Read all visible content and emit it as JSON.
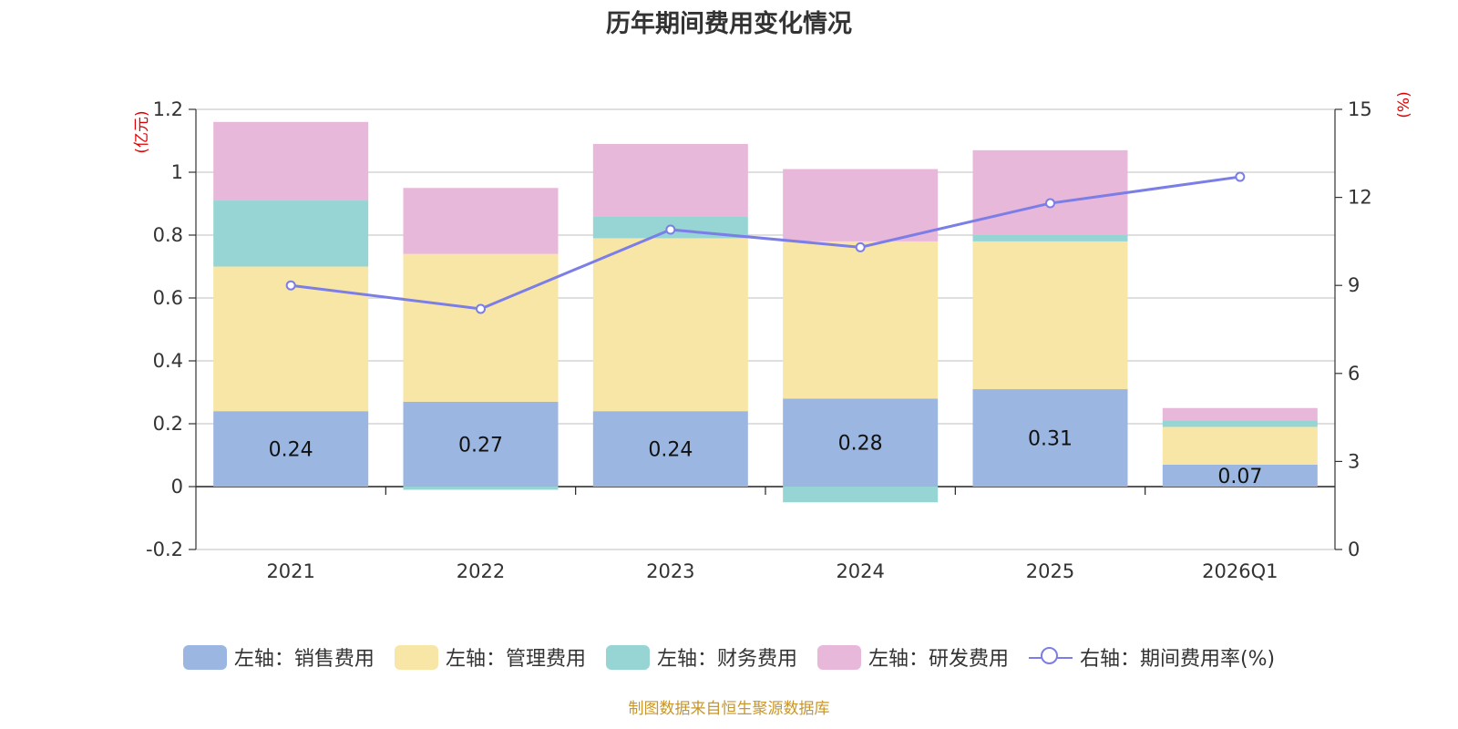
{
  "chart_data": {
    "type": "bar",
    "title": "历年期间费用变化情况",
    "categories": [
      "2021",
      "2022",
      "2023",
      "2024",
      "2025",
      "2026Q1"
    ],
    "left_axis": {
      "unit": "(亿元)",
      "ylim": [
        -0.2,
        1.2
      ],
      "ticks": [
        "-0.2",
        "0",
        "0.2",
        "0.4",
        "0.6",
        "0.8",
        "1",
        "1.2"
      ]
    },
    "right_axis": {
      "unit": "(%)",
      "ylim": [
        0,
        15
      ],
      "ticks": [
        "0",
        "3",
        "6",
        "9",
        "12",
        "15"
      ]
    },
    "series": [
      {
        "name": "左轴：销售费用",
        "type": "bar",
        "axis": "left",
        "color": "#9bb7e1",
        "values": [
          0.24,
          0.27,
          0.24,
          0.28,
          0.31,
          0.07
        ],
        "labels": [
          "0.24",
          "0.27",
          "0.24",
          "0.28",
          "0.31",
          "0.07"
        ]
      },
      {
        "name": "左轴：管理费用",
        "type": "bar",
        "axis": "left",
        "color": "#f8e6a6",
        "values": [
          0.46,
          0.47,
          0.55,
          0.5,
          0.47,
          0.12
        ]
      },
      {
        "name": "左轴：财务费用",
        "type": "bar",
        "axis": "left",
        "color": "#97d4d4",
        "values": [
          0.21,
          -0.01,
          0.07,
          -0.05,
          0.02,
          0.02
        ]
      },
      {
        "name": "左轴：研发费用",
        "type": "bar",
        "axis": "left",
        "color": "#e8b8da",
        "values": [
          0.25,
          0.21,
          0.23,
          0.23,
          0.27,
          0.04
        ]
      },
      {
        "name": "右轴：期间费用率(%)",
        "type": "line",
        "axis": "right",
        "color": "#7b7ee6",
        "values": [
          9.0,
          8.2,
          10.9,
          10.3,
          11.8,
          12.7
        ]
      }
    ],
    "legend_position": "bottom",
    "grid": true
  },
  "footer": {
    "source": "制图数据来自恒生聚源数据库"
  }
}
